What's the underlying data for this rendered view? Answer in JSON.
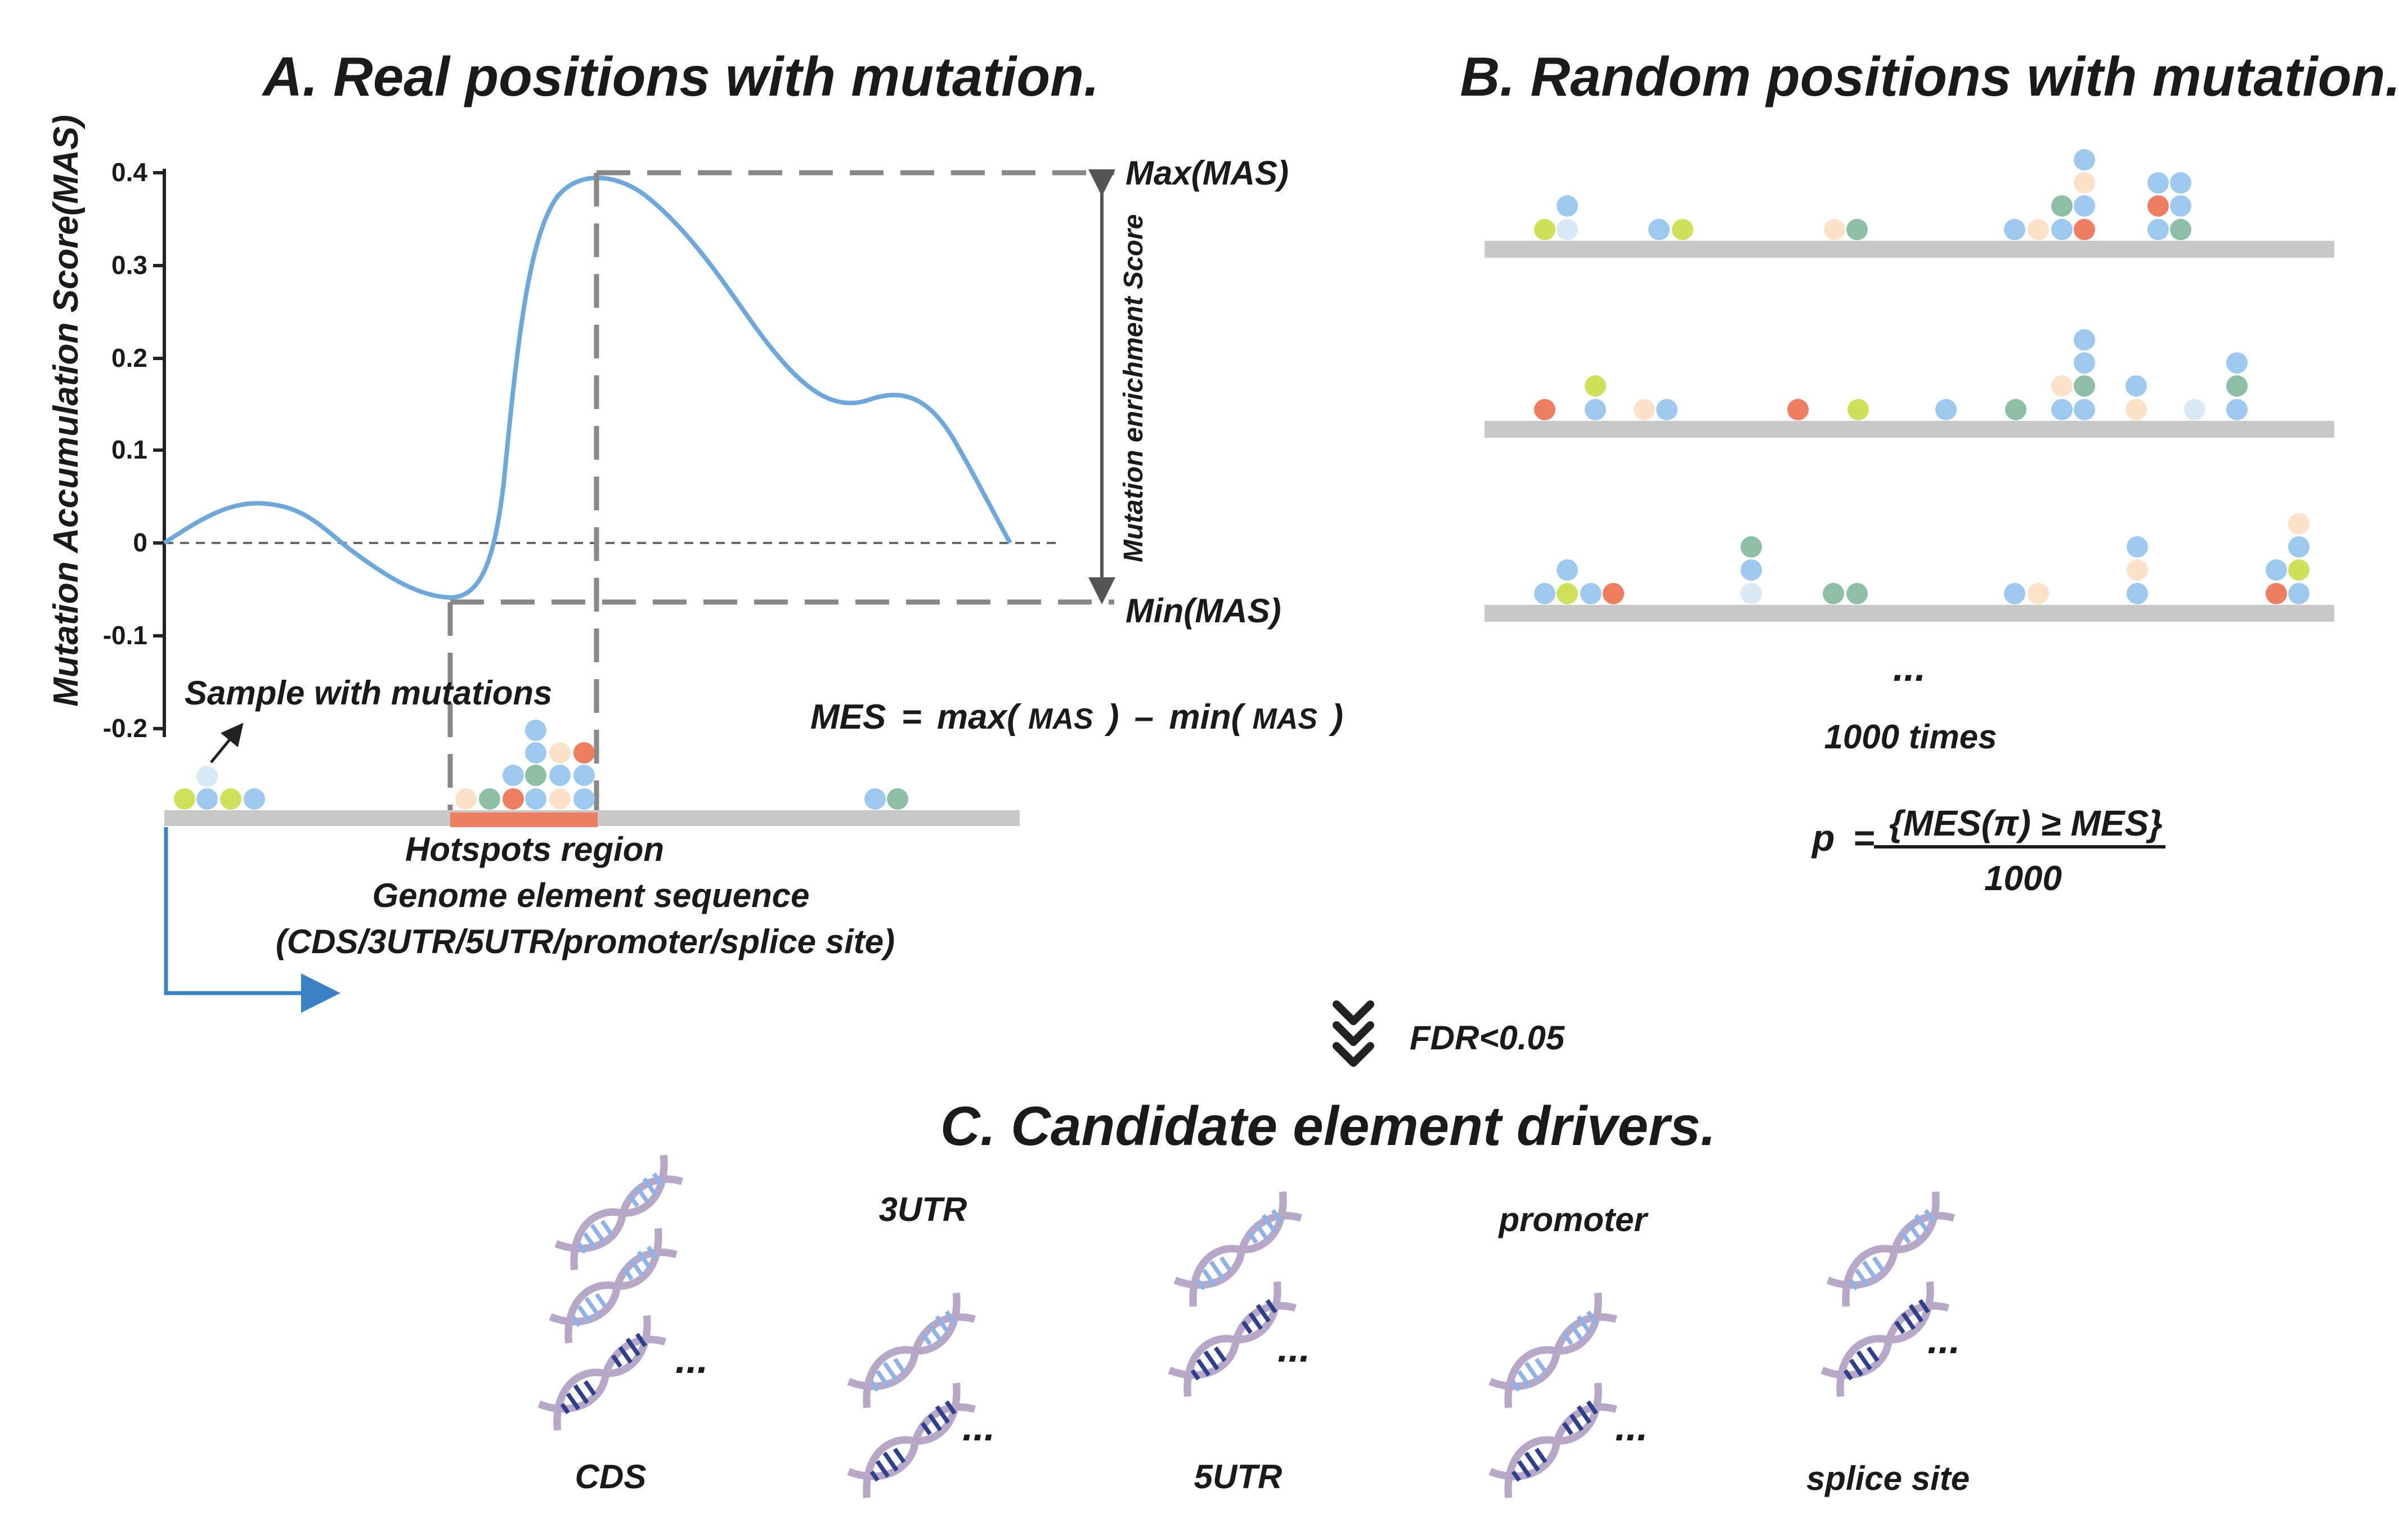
{
  "panel_a": {
    "title": "A. Real positions with mutation.",
    "y_axis_label": "Mutation Accumulation Score(MAS)",
    "y_ticks": [
      "0.4",
      "0.3",
      "0.2",
      "0.1",
      "0",
      "-0.1",
      "-0.2"
    ],
    "max_label": "Max(MAS)",
    "min_label": "Min(MAS)",
    "enrichment_label": "Mutation enrichment Score",
    "sample_label": "Sample with mutations",
    "mes_formula": {
      "lhs": "MES",
      "eq": "=",
      "max_fn": "max(",
      "arg1": "MAS",
      "close1": ")",
      "minus": "–",
      "min_fn": "min(",
      "arg2": "MAS",
      "close2": ")"
    },
    "hotspot_label": "Hotspots region",
    "sequence_label": "Genome element sequence",
    "sequence_types": "(CDS/3UTR/5UTR/promoter/splice site)"
  },
  "panel_b": {
    "title": "B. Random positions with mutation.",
    "ellipsis": "...",
    "repeat_label": "1000 times",
    "p_formula": {
      "lhs": "p",
      "eq": "=",
      "numerator": "{MES(π) ≥ MES}",
      "denominator": "1000"
    }
  },
  "filter_label": "FDR<0.05",
  "panel_c": {
    "title": "C. Candidate element drivers.",
    "elements": [
      {
        "label": "CDS"
      },
      {
        "label": "3UTR"
      },
      {
        "label": "5UTR"
      },
      {
        "label": "promoter"
      },
      {
        "label": "splice site"
      }
    ],
    "ellipsis": "..."
  },
  "colors": {
    "blue_dot": "#9dc9ee",
    "pale_blue_dot": "#d9e8f5",
    "yellow_green_dot": "#cfe15a",
    "sea_green_dot": "#8dbfa6",
    "peach_dot": "#fbe1c8",
    "orange_red_dot": "#ee7d62",
    "curve": "#6ea8da",
    "hotspot_bar": "#ee7d62",
    "track": "#c8c8c8",
    "dna_light": "#8fb3e6",
    "dna_dark": "#2e3f8c",
    "dna_backbone": "#b8a8c8",
    "arrow_blue": "#3b82c4"
  }
}
